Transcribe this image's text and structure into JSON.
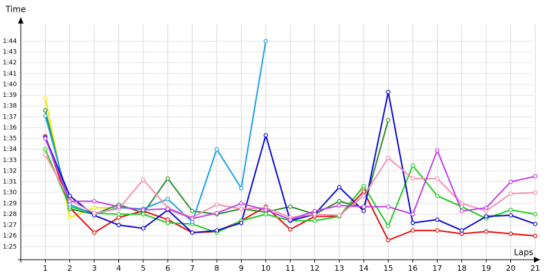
{
  "chart_data": {
    "type": "line",
    "x_label": "Laps",
    "y_label": "Time",
    "x": [
      1,
      2,
      3,
      4,
      5,
      6,
      7,
      8,
      9,
      10,
      11,
      12,
      13,
      14,
      15,
      16,
      17,
      18,
      19,
      20,
      21
    ],
    "xlim": [
      0,
      21.2
    ],
    "xticks": [
      1,
      2,
      3,
      4,
      5,
      6,
      7,
      8,
      9,
      10,
      11,
      12,
      13,
      14,
      15,
      16,
      17,
      18,
      19,
      20,
      21
    ],
    "ylim": [
      83.8,
      106.2
    ],
    "yticks": [
      {
        "value": 85,
        "label": "1:25"
      },
      {
        "value": 86,
        "label": "1:26"
      },
      {
        "value": 87,
        "label": "1:27"
      },
      {
        "value": 88,
        "label": "1:28"
      },
      {
        "value": 89,
        "label": "1:29"
      },
      {
        "value": 90,
        "label": "1:30"
      },
      {
        "value": 91,
        "label": "1:31"
      },
      {
        "value": 92,
        "label": "1:32"
      },
      {
        "value": 93,
        "label": "1:33"
      },
      {
        "value": 94,
        "label": "1:34"
      },
      {
        "value": 95,
        "label": "1:35"
      },
      {
        "value": 96,
        "label": "1:36"
      },
      {
        "value": 97,
        "label": "1:37"
      },
      {
        "value": 98,
        "label": "1:38"
      },
      {
        "value": 99,
        "label": "1:39"
      },
      {
        "value": 100,
        "label": "1:40"
      },
      {
        "value": 101,
        "label": "1:41"
      },
      {
        "value": 102,
        "label": "1:42"
      },
      {
        "value": 103,
        "label": "1:43"
      },
      {
        "value": 104,
        "label": "1:44"
      }
    ],
    "grid": true,
    "series": [
      {
        "color": "#e8e800",
        "values": [
          98.7,
          87.7,
          88.6,
          88.6,
          null,
          null,
          null,
          null,
          null,
          null,
          null,
          null,
          null,
          null,
          null,
          null,
          null,
          null,
          null,
          null,
          null
        ]
      },
      {
        "color": "#e01010",
        "values": [
          95.2,
          88.6,
          86.3,
          87.7,
          88.3,
          87.5,
          86.3,
          86.4,
          87.4,
          88.7,
          86.6,
          87.8,
          87.8,
          90.1,
          85.6,
          86.5,
          86.5,
          86.2,
          86.4,
          86.2,
          86.0
        ]
      },
      {
        "color": "#2e8b2e",
        "values": [
          97.6,
          88.5,
          88.0,
          88.9,
          88.1,
          91.3,
          88.3,
          88.0,
          88.5,
          88.2,
          88.7,
          88.0,
          89.2,
          88.6,
          96.7,
          null,
          null,
          null,
          null,
          null,
          null
        ]
      },
      {
        "color": "#22cc22",
        "values": [
          94.0,
          88.7,
          88.1,
          88.0,
          88.0,
          87.2,
          87.1,
          86.3,
          87.4,
          88.0,
          87.4,
          87.4,
          87.8,
          90.6,
          86.9,
          92.5,
          89.7,
          88.7,
          87.6,
          88.4,
          88.0
        ]
      },
      {
        "color": "#1ea0e6",
        "values": [
          97.1,
          88.9,
          88.0,
          88.6,
          88.5,
          89.4,
          87.3,
          94.0,
          90.4,
          104.0,
          null,
          null,
          null,
          null,
          null,
          null,
          null,
          null,
          null,
          null,
          null
        ]
      },
      {
        "color": "#0a0ad2",
        "values": [
          95.1,
          89.7,
          87.9,
          87.0,
          86.7,
          88.4,
          86.3,
          86.5,
          87.2,
          95.3,
          87.4,
          88.0,
          90.5,
          88.3,
          99.3,
          87.2,
          87.5,
          86.5,
          87.8,
          87.9,
          87.1
        ]
      },
      {
        "color": "#f590b0",
        "values": [
          93.5,
          89.3,
          88.1,
          88.5,
          91.2,
          88.6,
          87.7,
          88.9,
          88.5,
          88.6,
          87.7,
          88.0,
          87.9,
          89.7,
          93.2,
          91.3,
          91.3,
          89.0,
          88.3,
          89.9,
          90.0
        ]
      },
      {
        "color": "#c040e8",
        "values": [
          95.0,
          89.2,
          89.2,
          88.7,
          88.4,
          88.5,
          87.6,
          88.1,
          89.0,
          88.4,
          87.5,
          88.3,
          88.8,
          88.7,
          88.7,
          88.0,
          93.9,
          88.3,
          88.6,
          91.0,
          91.5
        ]
      }
    ]
  }
}
